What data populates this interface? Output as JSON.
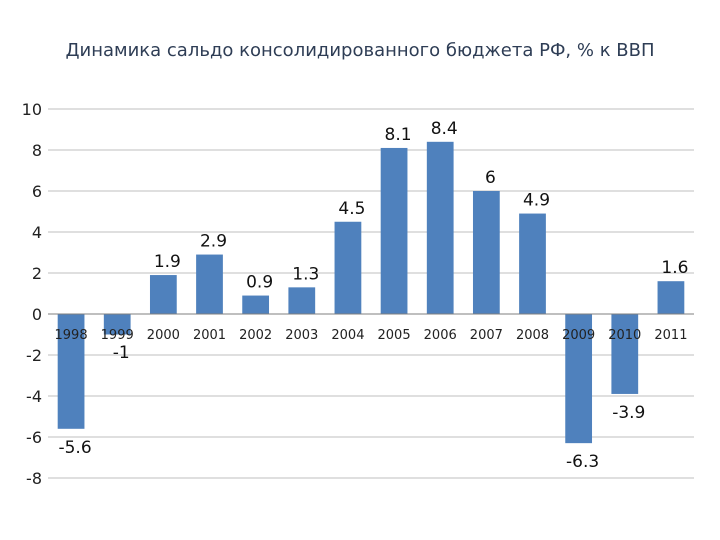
{
  "chart_data": {
    "type": "bar",
    "title": "Динамика сальдо консолидированного бюджета РФ, % к ВВП",
    "xlabel": "",
    "ylabel": "",
    "categories": [
      "1998",
      "1999",
      "2000",
      "2001",
      "2002",
      "2003",
      "2004",
      "2005",
      "2006",
      "2007",
      "2008",
      "2009",
      "2010",
      "2011"
    ],
    "values": [
      -5.6,
      -1,
      1.9,
      2.9,
      0.9,
      1.3,
      4.5,
      8.1,
      8.4,
      6,
      4.9,
      -6.3,
      -3.9,
      1.6
    ],
    "data_labels": [
      "-5.6",
      "-1",
      "1.9",
      "2.9",
      "0.9",
      "1.3",
      "4.5",
      "8.1",
      "8.4",
      "6",
      "4.9",
      "-6.3",
      "-3.9",
      "1.6"
    ],
    "y_ticks": [
      "10",
      "8",
      "6",
      "4",
      "2",
      "0",
      "-2",
      "-4",
      "-6",
      "-8"
    ],
    "ylim": [
      -8,
      10
    ],
    "grid": true,
    "legend": "none",
    "bar_color": "#4f81bd"
  }
}
